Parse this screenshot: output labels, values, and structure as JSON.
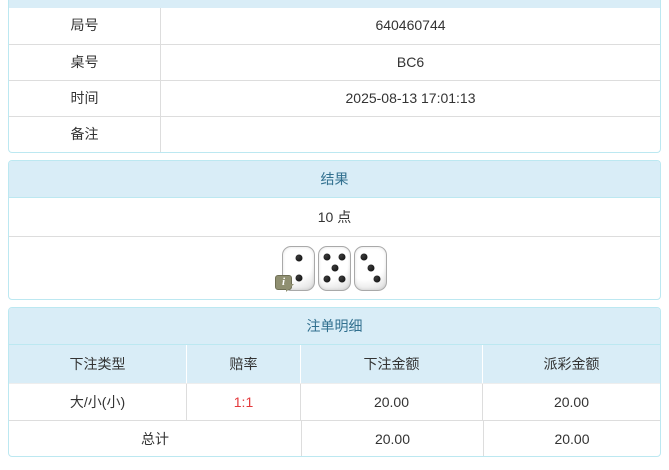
{
  "info_table": {
    "rows": [
      {
        "label": "局号",
        "value": "640460744"
      },
      {
        "label": "桌号",
        "value": "BC6"
      },
      {
        "label": "时间",
        "value": "2025-08-13 17:01:13"
      },
      {
        "label": "备注",
        "value": ""
      }
    ]
  },
  "result_panel": {
    "title": "结果",
    "points": "10 点",
    "dice": [
      2,
      5,
      3
    ],
    "info_icon_glyph": "i"
  },
  "bets_panel": {
    "title": "注单明细",
    "columns": [
      "下注类型",
      "赔率",
      "下注金额",
      "派彩金额"
    ],
    "rows": [
      {
        "type": "大/小(小)",
        "odds": "1:1",
        "bet": "20.00",
        "payout": "20.00"
      }
    ],
    "total_label": "总计",
    "total_bet": "20.00",
    "total_payout": "20.00"
  },
  "colors": {
    "heading_bg": "#d9edf7",
    "heading_text": "#31708f",
    "panel_border": "#bce8f1",
    "inner_border": "#dddddd",
    "odds_red": "#e4393c"
  }
}
